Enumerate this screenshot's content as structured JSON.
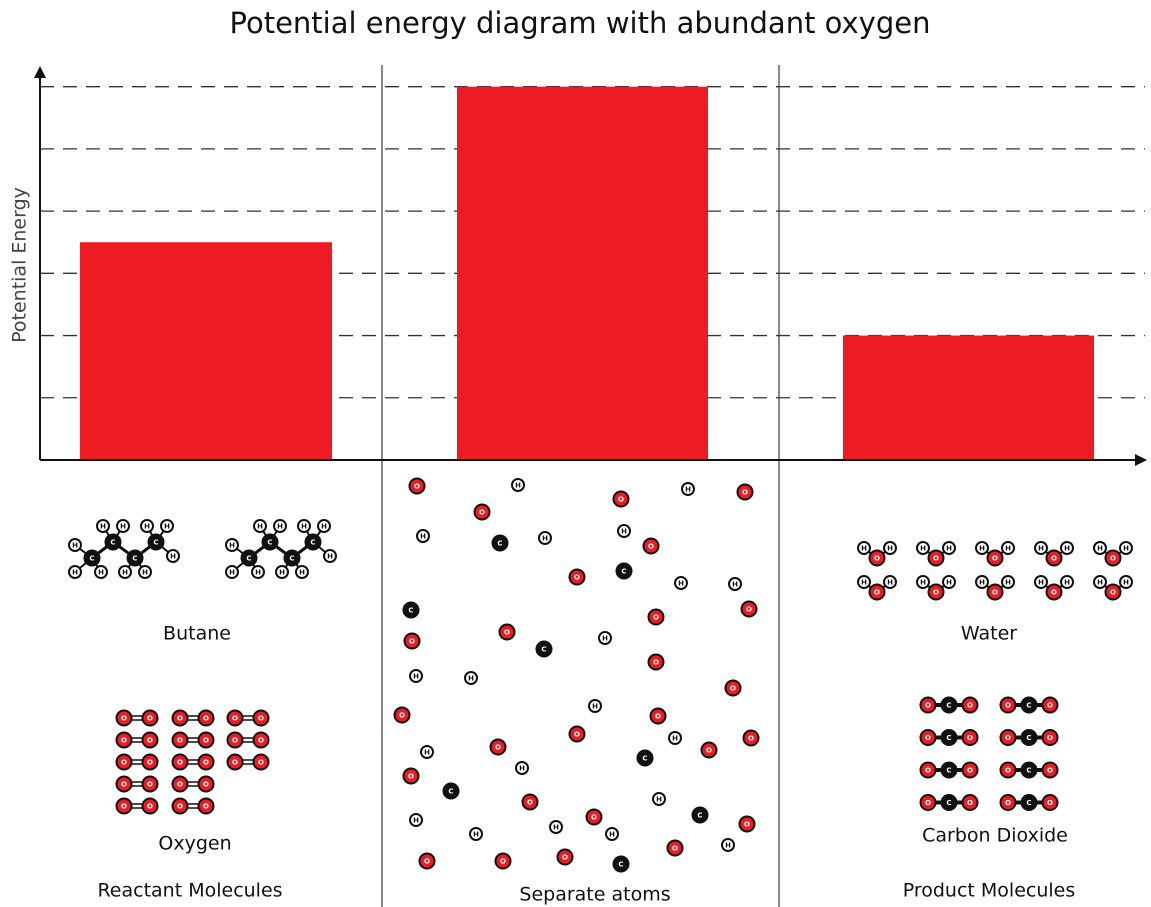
{
  "chart_data": {
    "type": "bar",
    "title": "Potential energy diagram with abundant oxygen",
    "y_label": "Potential Energy",
    "categories": [
      "Reactant Molecules",
      "Separate atoms",
      "Product Molecules"
    ],
    "values": [
      3.5,
      6,
      2
    ],
    "color": "#ed1c24",
    "ylim": [
      0,
      6.3
    ],
    "yticks": [
      1,
      2,
      3,
      4,
      5,
      6
    ],
    "grid": true
  },
  "illustrations": {
    "molecule_labels": [
      "Butane",
      "Oxygen",
      "Water",
      "Carbon Dioxide"
    ],
    "atom_symbols": [
      "H",
      "C",
      "O"
    ]
  }
}
